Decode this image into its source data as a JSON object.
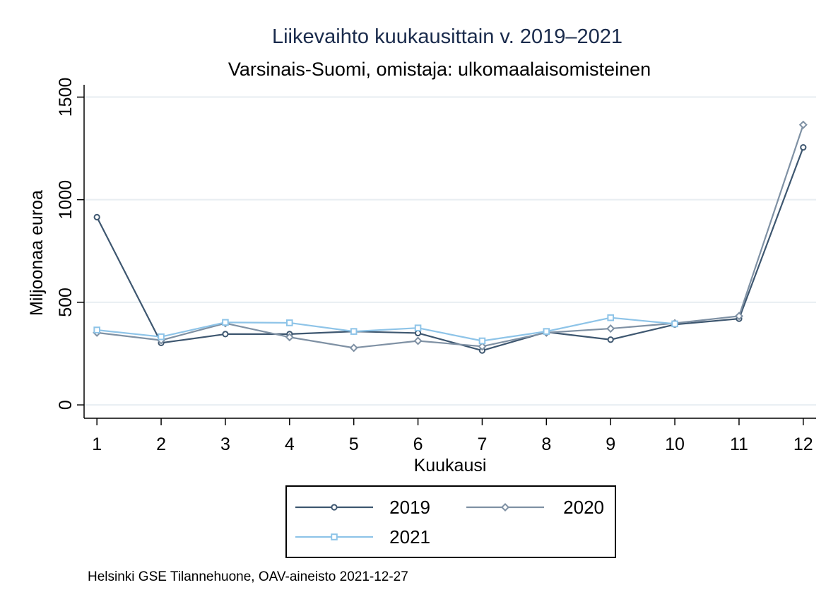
{
  "chart_data": {
    "type": "line",
    "title": "Liikevaihto kuukausittain v. 2019–2021",
    "subtitle": "Varsinais-Suomi, omistaja: ulkomaalaisomisteinen",
    "xlabel": "Kuukausi",
    "ylabel": "Miljoonaa euroa",
    "x": [
      1,
      2,
      3,
      4,
      5,
      6,
      7,
      8,
      9,
      10,
      11,
      12
    ],
    "x_tick_labels": [
      "1",
      "2",
      "3",
      "4",
      "5",
      "6",
      "7",
      "8",
      "9",
      "10",
      "11",
      "12"
    ],
    "xlim": [
      0.8,
      12.2
    ],
    "ylim": [
      -65,
      1560
    ],
    "y_ticks": [
      0,
      500,
      1000,
      1500
    ],
    "y_tick_labels": [
      "0",
      "500",
      "1000",
      "1500"
    ],
    "grid": true,
    "legend_position": "bottom",
    "series": [
      {
        "name": "2019",
        "color": "#3e5770",
        "marker": "circle",
        "values": [
          915,
          302,
          345,
          345,
          358,
          350,
          265,
          355,
          318,
          392,
          420,
          1255
        ]
      },
      {
        "name": "2020",
        "color": "#7f91a4",
        "marker": "diamond",
        "values": [
          352,
          315,
          398,
          330,
          278,
          312,
          285,
          352,
          372,
          398,
          433,
          1365
        ]
      },
      {
        "name": "2021",
        "color": "#8ec4e8",
        "marker": "square",
        "values": [
          365,
          332,
          402,
          400,
          358,
          375,
          312,
          358,
          425,
          395,
          null,
          null
        ]
      }
    ]
  },
  "note": "Helsinki GSE Tilannehuone, OAV-aineisto 2021-12-27"
}
